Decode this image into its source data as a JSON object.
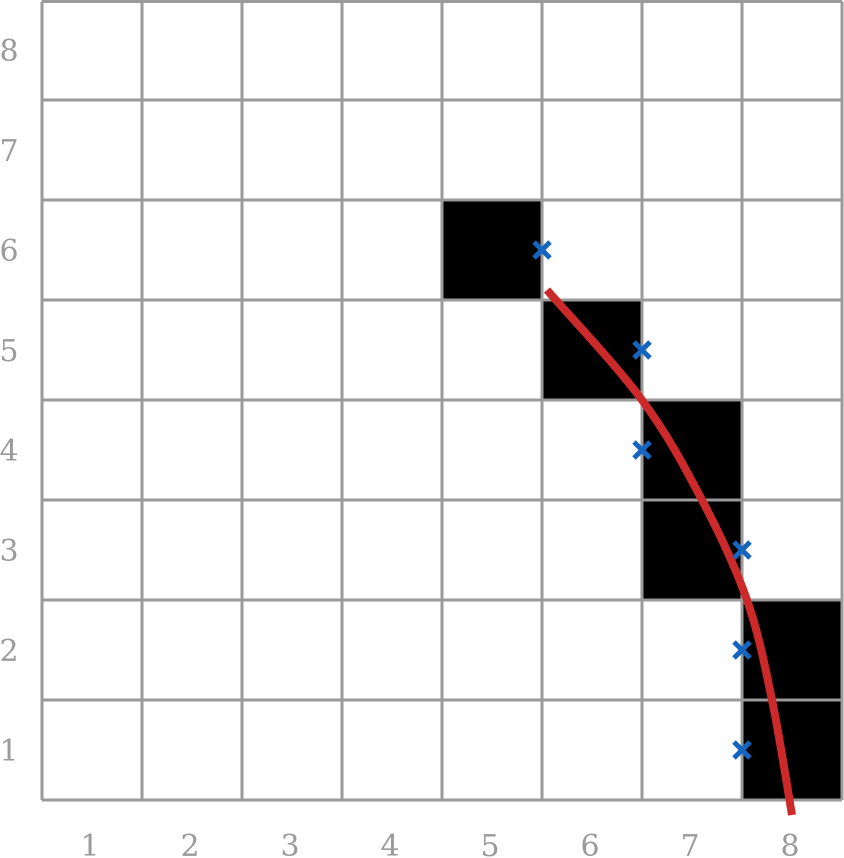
{
  "grid": {
    "cols": 8,
    "rows": 8,
    "x_labels": [
      "1",
      "2",
      "3",
      "4",
      "5",
      "6",
      "7",
      "8"
    ],
    "y_labels": [
      "1",
      "2",
      "3",
      "4",
      "5",
      "6",
      "7",
      "8"
    ]
  },
  "filled_cells": [
    {
      "col": 5,
      "row": 6
    },
    {
      "col": 6,
      "row": 5
    },
    {
      "col": 7,
      "row": 4
    },
    {
      "col": 7,
      "row": 3
    },
    {
      "col": 8,
      "row": 2
    },
    {
      "col": 8,
      "row": 1
    }
  ],
  "markers": [
    {
      "x": 6.0,
      "y": 6.5
    },
    {
      "x": 7.0,
      "y": 5.5
    },
    {
      "x": 7.0,
      "y": 4.5
    },
    {
      "x": 8.0,
      "y": 3.5
    },
    {
      "x": 8.0,
      "y": 2.5
    },
    {
      "x": 8.0,
      "y": 1.5
    }
  ],
  "curve": [
    {
      "x": 6.05,
      "y": 6.1
    },
    {
      "x": 7.0,
      "y": 5.0
    },
    {
      "x": 7.6,
      "y": 4.0
    },
    {
      "x": 8.05,
      "y": 3.0
    },
    {
      "x": 8.3,
      "y": 2.0
    },
    {
      "x": 8.5,
      "y": 0.85
    }
  ],
  "colors": {
    "grid": "#9a9a9a",
    "filled": "#000000",
    "marker": "#1565c0",
    "curve": "#cc2a2a",
    "label": "#9a9a9a"
  }
}
